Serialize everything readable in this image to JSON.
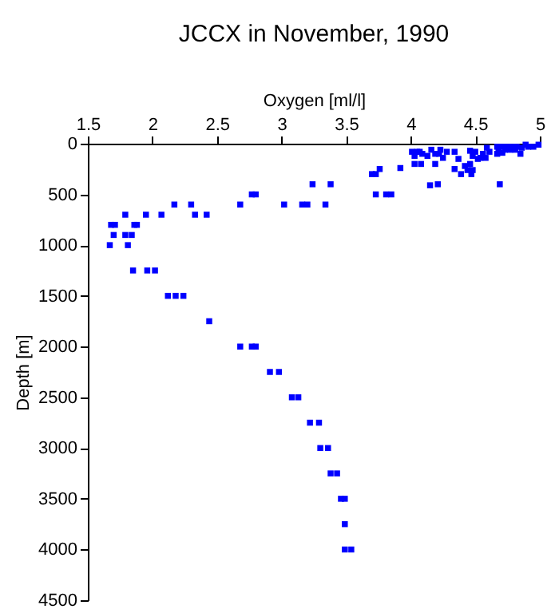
{
  "chart_data": {
    "type": "scatter",
    "title": "JCCX in November, 1990",
    "xlabel": "Oxygen [ml/l]",
    "ylabel": "Depth [m]",
    "xlim": [
      1.5,
      5
    ],
    "xticks": [
      1.5,
      2,
      2.5,
      3,
      3.5,
      4,
      4.5,
      5
    ],
    "ylim": [
      4500,
      0
    ],
    "yticks": [
      0,
      500,
      1000,
      1500,
      2000,
      2500,
      3000,
      3500,
      4000,
      4500
    ],
    "grid": false,
    "marker": "square",
    "series": [
      {
        "color": "#0000ff",
        "x": [
          3.24,
          3.38,
          2.77,
          2.8,
          2.68,
          3.02,
          3.16,
          3.2,
          3.34,
          2.17,
          2.3,
          1.79,
          1.95,
          2.07,
          2.33,
          2.42,
          1.68,
          1.71,
          1.86,
          1.88,
          1.7,
          1.79,
          1.84,
          1.67,
          1.81,
          1.85,
          1.96,
          2.02,
          2.12,
          2.18,
          2.24,
          2.44,
          2.68,
          2.77,
          2.8,
          2.91,
          2.98,
          3.08,
          3.13,
          3.22,
          3.29,
          3.3,
          3.36,
          3.38,
          3.43,
          3.46,
          3.49,
          3.49,
          3.49,
          3.54,
          3.7,
          3.73,
          3.76,
          3.92,
          3.73,
          3.81,
          3.85,
          4.15,
          4.21,
          4.69,
          4.01,
          4.05,
          4.07,
          4.03,
          4.09,
          4.13,
          4.16,
          4.19,
          4.22,
          4.25,
          4.23,
          4.28,
          4.34,
          4.37,
          4.03,
          4.08,
          4.19,
          4.34,
          4.39,
          4.42,
          4.46,
          4.47,
          4.44,
          4.48,
          4.46,
          4.5,
          4.48,
          4.52,
          4.54,
          4.56,
          4.58,
          4.59,
          4.61,
          4.67,
          4.71,
          4.75,
          4.79,
          4.68,
          4.73,
          4.77,
          4.81,
          4.67,
          4.71,
          4.85,
          4.86,
          4.91,
          4.95,
          4.99,
          4.89,
          4.82
        ],
        "values": [
          400,
          400,
          500,
          500,
          600,
          600,
          600,
          600,
          600,
          600,
          600,
          700,
          700,
          700,
          700,
          700,
          800,
          800,
          800,
          800,
          900,
          900,
          900,
          1000,
          1000,
          1250,
          1250,
          1250,
          1500,
          1500,
          1500,
          1750,
          2000,
          2000,
          2000,
          2250,
          2250,
          2500,
          2500,
          2750,
          2750,
          3000,
          3000,
          3250,
          3250,
          3500,
          3500,
          3750,
          4000,
          4000,
          300,
          300,
          250,
          240,
          500,
          500,
          500,
          410,
          400,
          400,
          80,
          80,
          80,
          120,
          100,
          120,
          60,
          100,
          100,
          140,
          60,
          80,
          80,
          150,
          200,
          200,
          200,
          250,
          300,
          220,
          200,
          300,
          260,
          260,
          70,
          80,
          120,
          150,
          140,
          100,
          140,
          40,
          80,
          30,
          30,
          30,
          30,
          60,
          60,
          60,
          60,
          100,
          90,
          100,
          40,
          30,
          30,
          10,
          10,
          30
        ]
      }
    ]
  }
}
